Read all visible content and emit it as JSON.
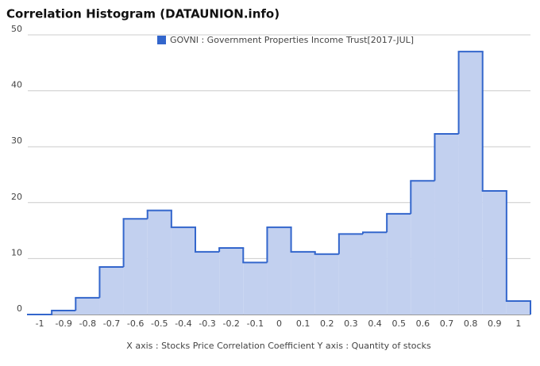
{
  "chart_data": {
    "type": "histogram",
    "title": "Correlation Histogram (DATAUNION.info)",
    "axis_caption": "X axis : Stocks Price Correlation Coefficient  Y axis : Quantity of stocks",
    "series": [
      {
        "name": "GOVNI : Government Properties Income Trust[2017-JUL]",
        "color": "#3366cc",
        "fill": "#c2d0ef",
        "bins": [
          -1.05,
          -0.95,
          -0.85,
          -0.75,
          -0.65,
          -0.55,
          -0.45,
          -0.35,
          -0.25,
          -0.15,
          -0.05,
          0.05,
          0.15,
          0.25,
          0.35,
          0.45,
          0.55,
          0.65,
          0.75,
          0.85,
          0.95,
          1.05
        ],
        "values": [
          0,
          0.7,
          3,
          8.5,
          17.1,
          18.6,
          15.6,
          11.2,
          11.9,
          9.3,
          15.6,
          11.2,
          10.8,
          14.4,
          14.7,
          18,
          23.9,
          32.3,
          47,
          22.1,
          2.4
        ]
      }
    ],
    "xlim": [
      -1.05,
      1.05
    ],
    "xticks": [
      -1,
      -0.9,
      -0.8,
      -0.7,
      -0.6,
      -0.5,
      -0.4,
      -0.3,
      -0.2,
      -0.1,
      0,
      0.1,
      0.2,
      0.3,
      0.4,
      0.5,
      0.6,
      0.7,
      0.8,
      0.9,
      1
    ],
    "ylim": [
      0,
      50
    ],
    "yticks": [
      0,
      10,
      20,
      30,
      40,
      50
    ],
    "grid": true
  }
}
